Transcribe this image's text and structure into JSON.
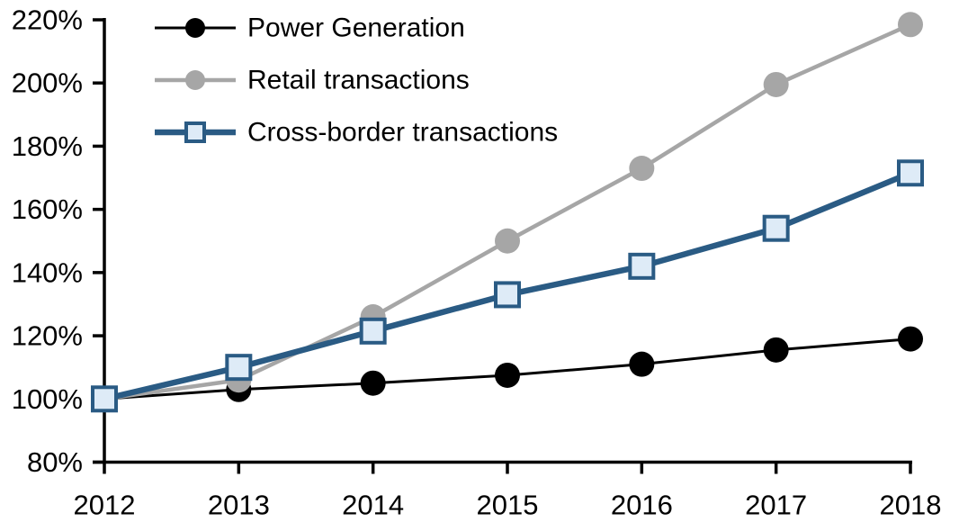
{
  "chart_data": {
    "type": "line",
    "title": "",
    "xlabel": "",
    "ylabel": "",
    "x": [
      2012,
      2013,
      2014,
      2015,
      2016,
      2017,
      2018
    ],
    "x_tick_labels": [
      "2012",
      "2013",
      "2014",
      "2015",
      "2016",
      "2017",
      "2018"
    ],
    "y_axis": {
      "min": 80,
      "max": 220,
      "step": 20,
      "tick_labels": [
        "80%",
        "100%",
        "120%",
        "140%",
        "160%",
        "180%",
        "200%",
        "220%"
      ],
      "unit": "%"
    },
    "grid": false,
    "legend_position": "top-left-inside",
    "series": [
      {
        "name": "Power Generation",
        "line_color": "#000000",
        "line_width": 3,
        "marker": "circle",
        "marker_fill": "#000000",
        "marker_stroke": "#000000",
        "values": [
          100,
          103,
          105,
          107.5,
          111,
          115.5,
          119
        ]
      },
      {
        "name": "Retail transactions",
        "line_color": "#A6A6A6",
        "line_width": 4.5,
        "marker": "circle",
        "marker_fill": "#A6A6A6",
        "marker_stroke": "#A6A6A6",
        "values": [
          100,
          106,
          126,
          150,
          173,
          199.5,
          218.5
        ]
      },
      {
        "name": "Cross-border transactions",
        "line_color": "#2A5B84",
        "line_width": 6.5,
        "marker": "square",
        "marker_fill": "#DEEBF7",
        "marker_stroke": "#2A5B84",
        "values": [
          100,
          110,
          121.5,
          133,
          142,
          154,
          171.5
        ]
      }
    ],
    "colors": {
      "background": "#FFFFFF",
      "axis": "#000000",
      "black_series": "#000000",
      "gray_series": "#A6A6A6",
      "blue_series": "#2A5B84",
      "blue_marker_fill": "#DEEBF7"
    }
  }
}
